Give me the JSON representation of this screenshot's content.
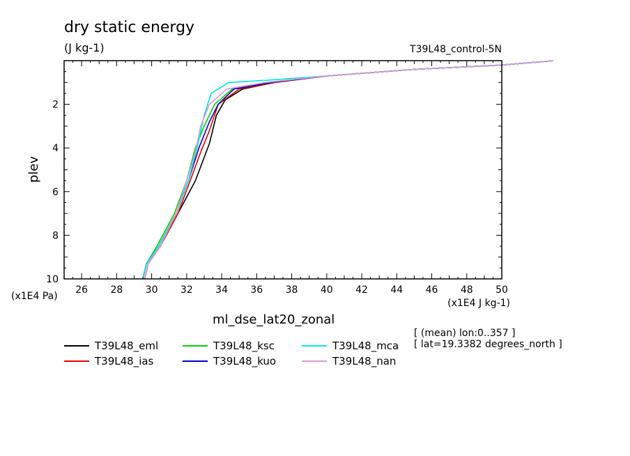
{
  "chart_data": {
    "type": "line",
    "title": "dry static energy",
    "units": "(J kg-1)",
    "experiment": "T39L48_control-5N",
    "xlabel": "ml_dse_lat20_zonal",
    "ylabel": "plev",
    "x_units": "(x1E4 J kg-1)",
    "y_units": "(x1E4 Pa)",
    "xlim": [
      25,
      50
    ],
    "ylim": [
      10,
      0
    ],
    "x_ticks": [
      26,
      28,
      30,
      32,
      34,
      36,
      38,
      40,
      42,
      44,
      46,
      48,
      50
    ],
    "y_ticks": [
      2,
      4,
      6,
      8,
      10
    ],
    "notes": [
      "[ (mean) lon:0..357 ]",
      "[ lat=19.3382 degrees_north ]"
    ],
    "grid": false,
    "legend_position": "bottom",
    "series": [
      {
        "name": "T39L48_eml",
        "color": "#000000",
        "x": [
          29.6,
          29.8,
          30.5,
          31.5,
          32.5,
          33.3,
          33.7,
          34.2,
          35.2,
          37,
          40,
          45,
          50,
          53
        ],
        "y": [
          10,
          9.3,
          8.5,
          7,
          5.5,
          3.8,
          2.5,
          1.8,
          1.3,
          1.0,
          0.7,
          0.4,
          0.2,
          0.0
        ]
      },
      {
        "name": "T39L48_ias",
        "color": "#e00000",
        "x": [
          29.6,
          29.8,
          30.5,
          31.5,
          32.2,
          32.8,
          33.3,
          33.8,
          35,
          37,
          40,
          45,
          50,
          53
        ],
        "y": [
          10,
          9.3,
          8.5,
          7,
          5.5,
          4.2,
          3.2,
          2.0,
          1.3,
          1.0,
          0.7,
          0.4,
          0.2,
          0.0
        ]
      },
      {
        "name": "T39L48_ksc",
        "color": "#00d000",
        "x": [
          29.5,
          29.7,
          30.3,
          31.3,
          32.0,
          32.5,
          33.0,
          33.6,
          34.6,
          36.5,
          40,
          45,
          50,
          53
        ],
        "y": [
          10,
          9.3,
          8.5,
          7,
          5.5,
          4.0,
          3.0,
          2.0,
          1.3,
          1.0,
          0.7,
          0.4,
          0.2,
          0.0
        ]
      },
      {
        "name": "T39L48_kuo",
        "color": "#0000c0",
        "x": [
          29.5,
          29.7,
          30.4,
          31.4,
          32.1,
          32.7,
          33.3,
          33.8,
          34.7,
          36.8,
          40,
          45,
          50,
          53
        ],
        "y": [
          10,
          9.3,
          8.5,
          7,
          5.5,
          4.0,
          2.8,
          2.0,
          1.3,
          1.0,
          0.7,
          0.4,
          0.2,
          0.0
        ]
      },
      {
        "name": "T39L48_mca",
        "color": "#00e5e5",
        "x": [
          29.5,
          29.7,
          30.4,
          31.4,
          32.1,
          32.6,
          33.0,
          33.4,
          34.4,
          36.5,
          40,
          45,
          50,
          53
        ],
        "y": [
          10,
          9.3,
          8.5,
          7,
          5.5,
          4.0,
          2.5,
          1.5,
          1.0,
          0.9,
          0.7,
          0.4,
          0.2,
          0.0
        ]
      },
      {
        "name": "T39L48_nan",
        "color": "#d898d8",
        "x": [
          29.6,
          29.8,
          30.5,
          31.4,
          32.0,
          32.5,
          32.8,
          33.3,
          34.3,
          36.5,
          40,
          45,
          50,
          53
        ],
        "y": [
          10,
          9.3,
          8.5,
          7,
          5.5,
          4.2,
          3.0,
          2.0,
          1.3,
          1.0,
          0.7,
          0.4,
          0.2,
          0.0
        ]
      }
    ]
  }
}
